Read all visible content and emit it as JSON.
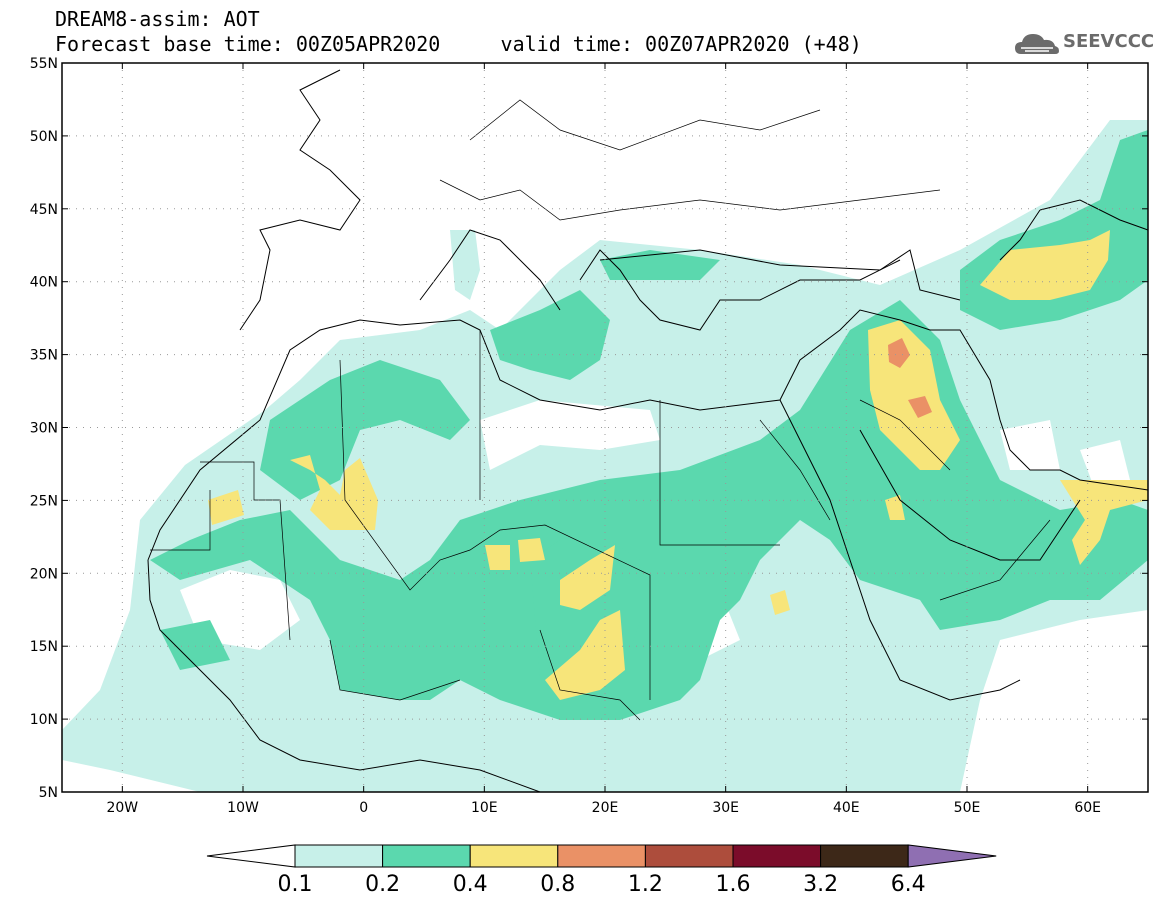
{
  "header": {
    "line1": "DREAM8-assim: AOT",
    "base_label": "Forecast base time:",
    "base_time": "00Z05APR2020",
    "valid_label": "valid time:",
    "valid_time": "00Z07APR2020 (+48)",
    "logo_text": "SEEVCCC",
    "logo_icon": "cloud-icon"
  },
  "map": {
    "lon_range": [
      -25,
      65
    ],
    "lat_range": [
      5,
      55
    ],
    "lon_ticks": [
      {
        "v": -20,
        "label": "20W"
      },
      {
        "v": -10,
        "label": "10W"
      },
      {
        "v": 0,
        "label": "0"
      },
      {
        "v": 10,
        "label": "10E"
      },
      {
        "v": 20,
        "label": "20E"
      },
      {
        "v": 30,
        "label": "30E"
      },
      {
        "v": 40,
        "label": "40E"
      },
      {
        "v": 50,
        "label": "50E"
      },
      {
        "v": 60,
        "label": "60E"
      }
    ],
    "lat_ticks": [
      {
        "v": 55,
        "label": "55N"
      },
      {
        "v": 50,
        "label": "50N"
      },
      {
        "v": 45,
        "label": "45N"
      },
      {
        "v": 40,
        "label": "40N"
      },
      {
        "v": 35,
        "label": "35N"
      },
      {
        "v": 30,
        "label": "30N"
      },
      {
        "v": 25,
        "label": "25N"
      },
      {
        "v": 20,
        "label": "20N"
      },
      {
        "v": 15,
        "label": "15N"
      },
      {
        "v": 10,
        "label": "10N"
      },
      {
        "v": 5,
        "label": "5N"
      }
    ],
    "gridlines": "dotted"
  },
  "colorbar": {
    "levels": [
      "0.1",
      "0.2",
      "0.4",
      "0.8",
      "1.2",
      "1.6",
      "3.2",
      "6.4"
    ],
    "low_color": "#ffffff",
    "colors": [
      "#c7f0e9",
      "#5bd8ae",
      "#f7e57a",
      "#ea9166",
      "#ad4d3c",
      "#7b0c2a",
      "#3d2818"
    ],
    "high_color": "#8f6fb2"
  }
}
